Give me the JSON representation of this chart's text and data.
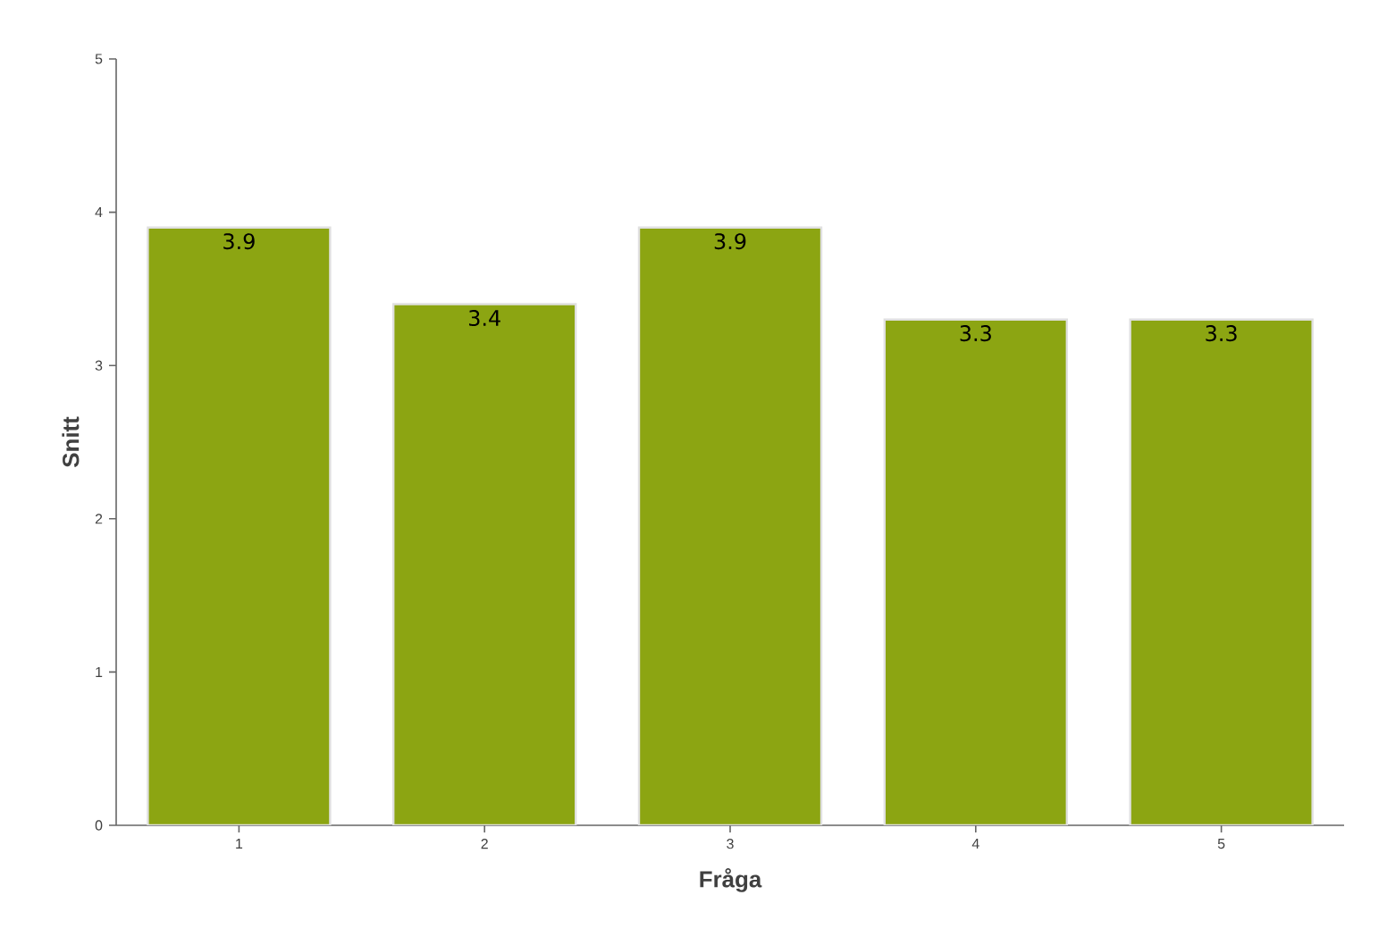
{
  "chart_data": {
    "type": "bar",
    "xlabel": "Fråga",
    "ylabel": "Snitt",
    "categories": [
      "1",
      "2",
      "3",
      "4",
      "5"
    ],
    "values": [
      3.9,
      3.4,
      3.9,
      3.3,
      3.3
    ],
    "color": "#8ca512",
    "ylim": [
      0,
      5
    ],
    "yticks": [
      0,
      1,
      2,
      3,
      4,
      5
    ],
    "data_labels": true
  }
}
